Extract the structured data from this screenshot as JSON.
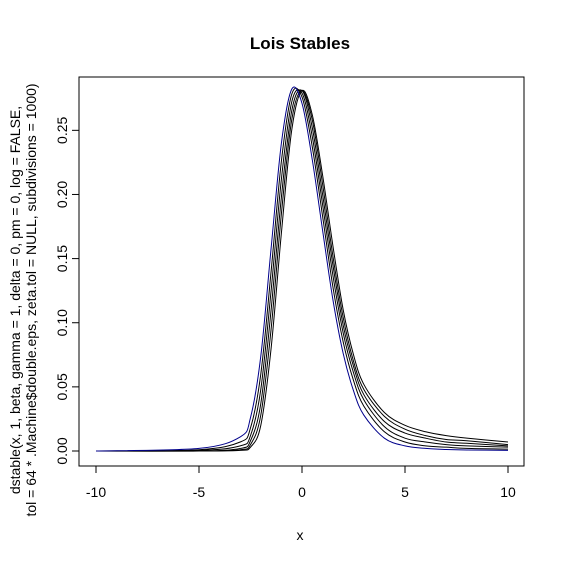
{
  "chart_data": {
    "type": "line",
    "title": "Lois Stables",
    "xlabel": "x",
    "ylabel_lines": [
      "dstable(x, 1, beta, gamma = 1, delta = 0, pm = 0, log = FALSE,",
      "tol = 64 * .Machine$double.eps, zeta.tol = NULL, subdivisions = 1000)"
    ],
    "xlim": [
      -10,
      10
    ],
    "ylim": [
      0,
      0.283
    ],
    "x_ticks": [
      -10,
      -5,
      0,
      5,
      10
    ],
    "x_tick_labels": [
      "-10",
      "-5",
      "0",
      "5",
      "10"
    ],
    "y_ticks": [
      0,
      0.05,
      0.1,
      0.15,
      0.2,
      0.25
    ],
    "y_tick_labels": [
      "0.00",
      "0.05",
      "0.10",
      "0.15",
      "0.20",
      "0.25"
    ],
    "grid": false,
    "colors": {
      "curves": "#000000",
      "last_curve": "#00008b",
      "frame": "#000000"
    },
    "series": [
      {
        "x": [
          -10,
          -5,
          -3,
          -2.5,
          -2,
          -1.5,
          -1,
          -0.5,
          0,
          0.5,
          1,
          1.5,
          2,
          2.5,
          3,
          4,
          5,
          6,
          7,
          8,
          10
        ],
        "y": [
          0,
          0,
          0.0005,
          0.003,
          0.02,
          0.08,
          0.17,
          0.25,
          0.281,
          0.262,
          0.215,
          0.16,
          0.11,
          0.075,
          0.052,
          0.03,
          0.02,
          0.015,
          0.012,
          0.01,
          0.007
        ],
        "color": "#000000"
      },
      {
        "x": [
          -10,
          -5,
          -3,
          -2.5,
          -2,
          -1.5,
          -1,
          -0.5,
          0,
          0.5,
          1,
          1.5,
          2,
          2.5,
          3,
          4,
          5,
          6,
          7,
          8,
          10
        ],
        "y": [
          0,
          0,
          0.001,
          0.005,
          0.028,
          0.095,
          0.185,
          0.258,
          0.281,
          0.258,
          0.208,
          0.152,
          0.104,
          0.07,
          0.048,
          0.027,
          0.017,
          0.012,
          0.009,
          0.008,
          0.005
        ],
        "color": "#000000"
      },
      {
        "x": [
          -10,
          -5,
          -3,
          -2.5,
          -2,
          -1.5,
          -1,
          -0.5,
          0,
          0.5,
          1,
          1.5,
          2,
          2.5,
          3,
          4,
          5,
          6,
          7,
          8,
          10
        ],
        "y": [
          0,
          0,
          0.002,
          0.008,
          0.037,
          0.11,
          0.198,
          0.265,
          0.281,
          0.252,
          0.2,
          0.145,
          0.098,
          0.066,
          0.044,
          0.023,
          0.014,
          0.01,
          0.007,
          0.006,
          0.004
        ],
        "color": "#000000"
      },
      {
        "x": [
          -10,
          -5,
          -3,
          -2.5,
          -2,
          -1.5,
          -1,
          -0.5,
          0,
          0.5,
          1,
          1.5,
          2,
          2.5,
          3,
          4,
          5,
          6,
          7,
          8,
          10
        ],
        "y": [
          0,
          0.0005,
          0.004,
          0.012,
          0.048,
          0.125,
          0.212,
          0.272,
          0.279,
          0.245,
          0.192,
          0.137,
          0.092,
          0.061,
          0.04,
          0.019,
          0.01,
          0.007,
          0.005,
          0.004,
          0.003
        ],
        "color": "#000000"
      },
      {
        "x": [
          -10,
          -5,
          -3,
          -2.5,
          -2,
          -1.5,
          -1,
          -0.5,
          0,
          0.5,
          1,
          1.5,
          2,
          2.5,
          3,
          4,
          5,
          6,
          7,
          8,
          10
        ],
        "y": [
          0,
          0.001,
          0.007,
          0.018,
          0.06,
          0.14,
          0.226,
          0.278,
          0.276,
          0.237,
          0.183,
          0.128,
          0.085,
          0.055,
          0.035,
          0.015,
          0.007,
          0.004,
          0.003,
          0.002,
          0.0015
        ],
        "color": "#000000"
      },
      {
        "x": [
          -10,
          -5,
          -3,
          -2.5,
          -2,
          -1.5,
          -1,
          -0.5,
          0,
          0.5,
          1,
          1.5,
          2,
          2.5,
          3,
          4,
          5,
          6,
          7,
          8,
          10
        ],
        "y": [
          0,
          0.002,
          0.011,
          0.026,
          0.074,
          0.158,
          0.24,
          0.282,
          0.271,
          0.227,
          0.172,
          0.118,
          0.076,
          0.047,
          0.028,
          0.01,
          0.004,
          0.002,
          0.0012,
          0.0008,
          0.0005
        ],
        "color": "#00008b"
      }
    ]
  }
}
